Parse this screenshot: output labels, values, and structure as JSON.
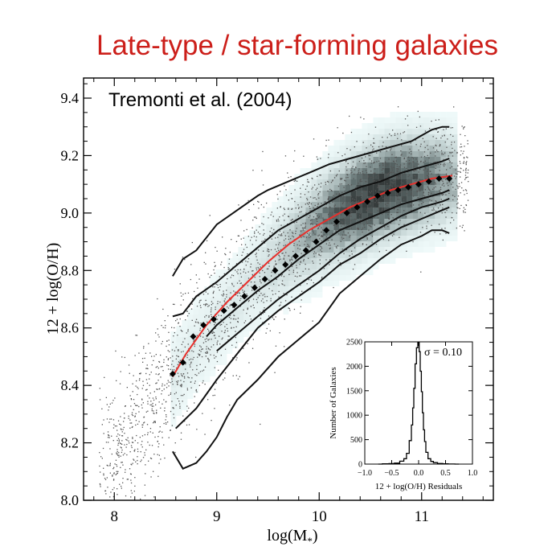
{
  "header": {
    "title": "Late-type / star-forming galaxies"
  },
  "chart_data": [
    {
      "type": "scatter",
      "annotation": "Tremonti et al. (2004)",
      "xlabel": "log(M*)",
      "xlabel_main": "log(M",
      "xlabel_sub": "*",
      "xlabel_close": ")",
      "ylabel": "12 + log(O/H)",
      "xlim": [
        7.7,
        11.7
      ],
      "ylim": [
        8.0,
        9.47
      ],
      "xticks": [
        8,
        9,
        10,
        11
      ],
      "xtick_labels": [
        "8",
        "9",
        "10",
        "11"
      ],
      "yticks": [
        8.0,
        8.2,
        8.4,
        8.6,
        8.8,
        9.0,
        9.2,
        9.4
      ],
      "ytick_labels": [
        "8.0",
        "8.2",
        "8.4",
        "8.6",
        "8.8",
        "9.0",
        "9.2",
        "9.4"
      ],
      "median_points": {
        "x": [
          8.57,
          8.67,
          8.77,
          8.87,
          8.97,
          9.07,
          9.17,
          9.27,
          9.37,
          9.47,
          9.57,
          9.67,
          9.77,
          9.87,
          9.97,
          10.07,
          10.17,
          10.27,
          10.37,
          10.47,
          10.57,
          10.67,
          10.77,
          10.87,
          10.97,
          11.07,
          11.17,
          11.27
        ],
        "y": [
          8.44,
          8.48,
          8.57,
          8.61,
          8.63,
          8.66,
          8.68,
          8.71,
          8.74,
          8.77,
          8.8,
          8.82,
          8.85,
          8.87,
          8.9,
          8.94,
          8.97,
          9.0,
          9.02,
          9.04,
          9.06,
          9.07,
          9.08,
          9.09,
          9.1,
          9.11,
          9.12,
          9.12
        ]
      },
      "fit_curve": {
        "x": [
          8.57,
          8.7,
          8.9,
          9.1,
          9.3,
          9.5,
          9.7,
          9.9,
          10.1,
          10.3,
          10.5,
          10.7,
          10.9,
          11.1,
          11.3
        ],
        "y": [
          8.43,
          8.51,
          8.61,
          8.69,
          8.76,
          8.83,
          8.89,
          8.94,
          8.98,
          9.02,
          9.05,
          9.08,
          9.1,
          9.12,
          9.13
        ]
      },
      "contour_lines": [
        {
          "x": [
            8.57,
            8.67,
            8.8,
            9.0,
            9.2,
            9.4,
            9.5,
            9.7,
            9.9,
            10.1,
            10.3,
            10.5,
            10.7,
            10.9,
            11.0,
            11.1,
            11.2,
            11.27
          ],
          "y": [
            8.78,
            8.84,
            8.87,
            8.96,
            9.01,
            9.06,
            9.08,
            9.11,
            9.14,
            9.17,
            9.19,
            9.21,
            9.23,
            9.25,
            9.27,
            9.29,
            9.3,
            9.3
          ]
        },
        {
          "x": [
            8.57,
            8.67,
            8.8,
            9.0,
            9.2,
            9.4,
            9.6,
            9.8,
            10.0,
            10.2,
            10.4,
            10.6,
            10.8,
            11.0,
            11.2,
            11.27
          ],
          "y": [
            8.64,
            8.65,
            8.71,
            8.76,
            8.82,
            8.88,
            8.94,
            8.98,
            9.02,
            9.06,
            9.09,
            9.11,
            9.14,
            9.16,
            9.18,
            9.19
          ]
        },
        {
          "x": [
            8.9,
            9.0,
            9.2,
            9.4,
            9.6,
            9.8,
            10.0,
            10.2,
            10.4,
            10.6,
            10.8,
            11.0,
            11.2,
            11.27
          ],
          "y": [
            8.57,
            8.61,
            8.67,
            8.73,
            8.78,
            8.84,
            8.89,
            8.94,
            8.97,
            9.0,
            9.03,
            9.05,
            9.07,
            9.08
          ]
        },
        {
          "x": [
            9.0,
            9.2,
            9.4,
            9.6,
            9.8,
            10.0,
            10.2,
            10.4,
            10.6,
            10.8,
            11.0,
            11.2,
            11.27
          ],
          "y": [
            8.52,
            8.58,
            8.64,
            8.7,
            8.75,
            8.8,
            8.86,
            8.91,
            8.95,
            8.99,
            9.02,
            9.04,
            9.05
          ]
        },
        {
          "x": [
            8.6,
            8.8,
            9.0,
            9.2,
            9.4,
            9.6,
            9.8,
            10.0,
            10.2,
            10.4,
            10.6,
            10.8,
            11.0,
            11.2,
            11.27
          ],
          "y": [
            8.25,
            8.32,
            8.42,
            8.51,
            8.6,
            8.66,
            8.71,
            8.76,
            8.82,
            8.86,
            8.91,
            8.95,
            8.98,
            9.01,
            9.02
          ]
        },
        {
          "x": [
            8.57,
            8.67,
            8.8,
            8.9,
            9.0,
            9.1,
            9.2,
            9.4,
            9.6,
            9.8,
            10.0,
            10.2,
            10.4,
            10.6,
            10.8,
            11.0,
            11.1,
            11.2,
            11.27
          ],
          "y": [
            8.17,
            8.11,
            8.13,
            8.17,
            8.22,
            8.29,
            8.35,
            8.42,
            8.5,
            8.56,
            8.62,
            8.72,
            8.78,
            8.84,
            8.89,
            8.92,
            8.94,
            8.94,
            8.93
          ]
        }
      ]
    },
    {
      "type": "line",
      "xlabel": "12 + log(O/H) Residuals",
      "ylabel": "Number of Galaxies",
      "annotation": "σ = 0.10",
      "xlim": [
        -1.0,
        1.0
      ],
      "ylim": [
        0,
        2500
      ],
      "xticks": [
        -1.0,
        -0.5,
        0.0,
        0.5,
        1.0
      ],
      "xtick_labels": [
        "−1.0",
        "−0.5",
        "0.0",
        "0.5",
        "1.0"
      ],
      "yticks": [
        0,
        500,
        1000,
        1500,
        2000,
        2500
      ],
      "ytick_labels": [
        "0",
        "500",
        "1000",
        "1500",
        "2000",
        "2500"
      ],
      "x": [
        -0.75,
        -0.6,
        -0.5,
        -0.4,
        -0.3,
        -0.25,
        -0.2,
        -0.15,
        -0.12,
        -0.1,
        -0.08,
        -0.05,
        -0.03,
        0.0,
        0.02,
        0.04,
        0.06,
        0.08,
        0.1,
        0.12,
        0.15,
        0.2,
        0.25,
        0.3,
        0.4,
        0.5,
        0.6,
        0.75
      ],
      "y": [
        0,
        5,
        10,
        20,
        60,
        110,
        220,
        480,
        800,
        1150,
        1550,
        2050,
        2380,
        2480,
        2300,
        1900,
        1480,
        1050,
        700,
        460,
        240,
        110,
        55,
        30,
        12,
        5,
        2,
        0
      ]
    }
  ]
}
